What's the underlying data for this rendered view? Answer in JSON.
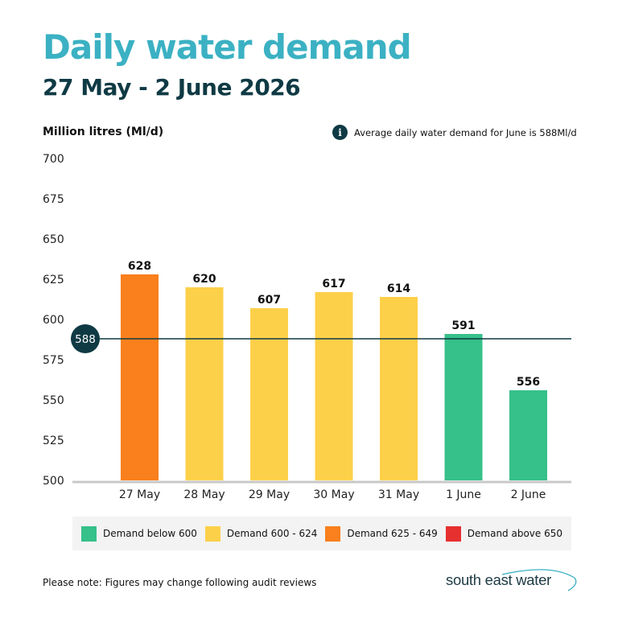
{
  "header": {
    "title": "Daily water demand",
    "subtitle": "27 May - 2 June 2026"
  },
  "info_note": "Average daily water demand for June is 588Ml/d",
  "chart_data": {
    "type": "bar",
    "title": "Daily water demand",
    "subtitle": "27 May - 2 June 2026",
    "ylabel": "Million litres (Ml/d)",
    "xlabel": "",
    "categories": [
      "27 May",
      "28 May",
      "29 May",
      "30 May",
      "31 May",
      "1 June",
      "2 June"
    ],
    "values": [
      628,
      620,
      607,
      617,
      614,
      591,
      556
    ],
    "ylim": [
      500,
      700
    ],
    "yticks": [
      700,
      675,
      650,
      625,
      600,
      575,
      550,
      525,
      500
    ],
    "grid": false,
    "reference_line": {
      "value": 588,
      "label": "588"
    },
    "bands": [
      {
        "label": "Demand below 600",
        "min": null,
        "max": 599,
        "color": "#36c08a"
      },
      {
        "label": "Demand 600 - 624",
        "min": 600,
        "max": 624,
        "color": "#fdd04a"
      },
      {
        "label": "Demand 625 - 649",
        "min": 625,
        "max": 649,
        "color": "#f9801d"
      },
      {
        "label": "Demand above 650",
        "min": 650,
        "max": null,
        "color": "#e63030"
      }
    ],
    "legend_position": "bottom"
  },
  "footer": {
    "note": "Please note: Figures may change following audit reviews",
    "brand": "south east water"
  },
  "colors": {
    "title": "#3bb1c3",
    "subtitle": "#0f3a44",
    "reference_line": "#0f3a44",
    "axis": "#c8c8c8"
  }
}
